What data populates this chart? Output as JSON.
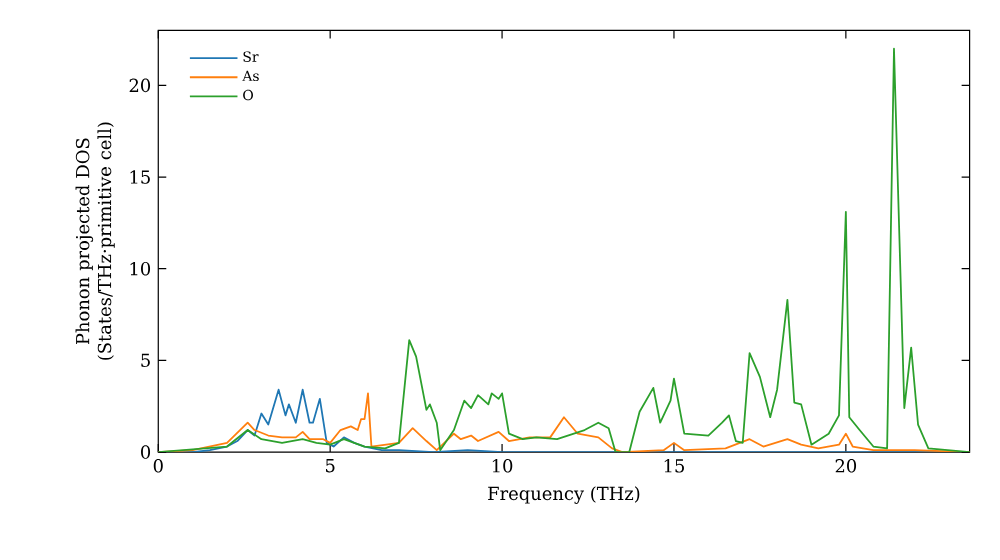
{
  "chart_data": {
    "type": "line",
    "xlabel": "Frequency (THz)",
    "ylabel": "Phonon projected DOS\n(States/THz·primitive cell)",
    "xlim": [
      0,
      23.6
    ],
    "ylim": [
      0,
      23
    ],
    "xticks": [
      0,
      5,
      10,
      15,
      20
    ],
    "yticks": [
      0,
      5,
      10,
      15,
      20
    ],
    "grid": false,
    "legend": "top left",
    "marker": "none",
    "line_style": "solid",
    "series": [
      {
        "name": "Sr",
        "color": "#1f77b4",
        "x": [
          0,
          1,
          1.5,
          2,
          2.3,
          2.6,
          2.8,
          3.0,
          3.2,
          3.5,
          3.7,
          3.8,
          4.0,
          4.2,
          4.4,
          4.5,
          4.7,
          4.9,
          5.1,
          5.4,
          5.7,
          6.0,
          6.5,
          7,
          8,
          9,
          10,
          12,
          23.6
        ],
        "values": [
          0,
          0,
          0.1,
          0.3,
          0.6,
          1.2,
          0.9,
          2.1,
          1.5,
          3.4,
          2.0,
          2.6,
          1.6,
          3.4,
          1.6,
          1.6,
          2.9,
          0.5,
          0.3,
          0.8,
          0.5,
          0.3,
          0.1,
          0.1,
          0,
          0.1,
          0,
          0,
          0
        ]
      },
      {
        "name": "As",
        "color": "#ff7f0e",
        "x": [
          0,
          1,
          2,
          2.6,
          2.8,
          3.2,
          3.6,
          4.0,
          4.2,
          4.4,
          4.8,
          5.0,
          5.3,
          5.6,
          5.8,
          5.9,
          6.0,
          6.1,
          6.2,
          7.0,
          7.4,
          7.8,
          8.1,
          8.6,
          8.8,
          9.1,
          9.3,
          9.9,
          10.2,
          10.8,
          11.4,
          11.8,
          12.2,
          12.8,
          13.2,
          13.5,
          14.7,
          15,
          15.3,
          16.5,
          17.2,
          17.6,
          18.3,
          18.7,
          19.2,
          19.8,
          20,
          20.2,
          20.8,
          22,
          23.6
        ],
        "values": [
          0,
          0.1,
          0.5,
          1.6,
          1.2,
          0.9,
          0.8,
          0.8,
          1.1,
          0.7,
          0.7,
          0.5,
          1.2,
          1.4,
          1.2,
          1.8,
          1.8,
          3.2,
          0.3,
          0.5,
          1.3,
          0.6,
          0.1,
          1.0,
          0.7,
          0.9,
          0.6,
          1.1,
          0.6,
          0.8,
          0.8,
          1.9,
          1.0,
          0.8,
          0.2,
          0,
          0.1,
          0.5,
          0.1,
          0.2,
          0.7,
          0.3,
          0.7,
          0.4,
          0.2,
          0.4,
          1.0,
          0.3,
          0.1,
          0.1,
          0
        ]
      },
      {
        "name": "O",
        "color": "#2ca02c",
        "x": [
          0,
          2,
          2.6,
          3.0,
          3.6,
          4.2,
          4.6,
          5.0,
          5.4,
          6.0,
          6.6,
          7.0,
          7.3,
          7.5,
          7.8,
          7.9,
          8.1,
          8.2,
          8.6,
          8.9,
          9.1,
          9.3,
          9.6,
          9.7,
          9.9,
          10.0,
          10.2,
          10.6,
          11.0,
          11.6,
          12.4,
          12.8,
          13.1,
          13.3,
          13.7,
          14.0,
          14.4,
          14.6,
          14.9,
          15.0,
          15.3,
          16.0,
          16.4,
          16.6,
          16.8,
          17.0,
          17.2,
          17.5,
          17.8,
          18.0,
          18.3,
          18.5,
          18.7,
          19.0,
          19.5,
          19.8,
          20.0,
          20.1,
          20.4,
          20.8,
          21.2,
          21.4,
          21.7,
          21.9,
          22.1,
          22.4,
          23.6
        ],
        "values": [
          0,
          0.3,
          1.2,
          0.7,
          0.5,
          0.7,
          0.5,
          0.4,
          0.7,
          0.3,
          0.2,
          0.5,
          6.1,
          5.2,
          2.3,
          2.6,
          1.6,
          0.1,
          1.2,
          2.8,
          2.4,
          3.1,
          2.6,
          3.2,
          2.9,
          3.2,
          1.0,
          0.7,
          0.8,
          0.7,
          1.2,
          1.6,
          1.3,
          0,
          0,
          2.2,
          3.5,
          1.6,
          2.8,
          4.0,
          1.0,
          0.9,
          1.6,
          2.0,
          0.6,
          0.5,
          5.4,
          4.1,
          1.9,
          3.4,
          8.3,
          2.7,
          2.6,
          0.4,
          1.0,
          2.0,
          13.1,
          1.9,
          1.2,
          0.3,
          0.2,
          22.0,
          2.4,
          5.7,
          1.5,
          0.2,
          0
        ]
      }
    ]
  }
}
